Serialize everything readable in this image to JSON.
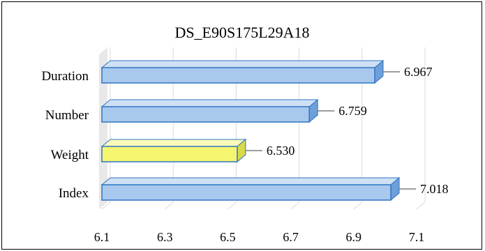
{
  "chart_data": {
    "type": "bar",
    "orientation": "horizontal",
    "style": "3d",
    "title": "DS_E90S175L29A18",
    "categories": [
      "Duration",
      "Number",
      "Weight",
      "Index"
    ],
    "values": [
      6.967,
      6.759,
      6.53,
      7.018
    ],
    "value_labels": [
      "6.967",
      "6.759",
      "6.530",
      "7.018"
    ],
    "xlim": [
      6.1,
      7.1
    ],
    "x_ticks": [
      "6.1",
      "6.3",
      "6.5",
      "6.7",
      "6.9",
      "7.1"
    ],
    "x_tick_values": [
      6.1,
      6.3,
      6.5,
      6.7,
      6.9,
      7.1
    ],
    "grid": true,
    "legend": "none",
    "colors": {
      "default_bar": "#a9c8ee",
      "default_bar_top": "#cfe0f5",
      "default_bar_side": "#6f9fd8",
      "default_edge": "#2e75c4",
      "highlight_bar": "#f5f570",
      "highlight_bar_top": "#fafab8",
      "highlight_bar_side": "#d9d94a",
      "leader_line": "#7f7f7f",
      "gridline": "#d9d9d9",
      "wall": "#e8e8e8"
    },
    "highlight_index": 2
  }
}
